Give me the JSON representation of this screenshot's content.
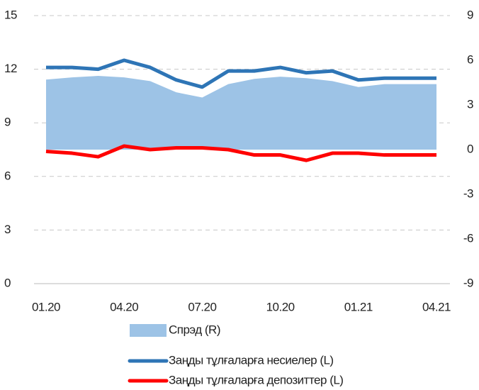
{
  "chart_data": {
    "type": "line",
    "categories": [
      "01.20",
      null,
      null,
      "04.20",
      null,
      null,
      "07.20",
      null,
      null,
      "10.20",
      null,
      null,
      "01.21",
      null,
      null,
      "04.21"
    ],
    "series": [
      {
        "name": "Спрэд (R)",
        "type": "area",
        "axis": "y2",
        "color": "#9dc3e6",
        "values": [
          4.7,
          4.85,
          4.95,
          4.85,
          4.6,
          3.85,
          3.5,
          4.4,
          4.75,
          4.9,
          4.8,
          4.6,
          4.2,
          4.4,
          4.4,
          4.4
        ]
      },
      {
        "name": "Заңды тұлғаларға несиелер  (L)",
        "type": "line",
        "color": "#2e75b6",
        "values": [
          12.1,
          12.1,
          12.0,
          12.5,
          12.1,
          11.4,
          11.0,
          11.9,
          11.9,
          12.1,
          11.8,
          11.9,
          11.4,
          11.5,
          11.5,
          11.5
        ]
      },
      {
        "name": "Заңды тұлғаларға депозиттер (L)",
        "type": "line",
        "color": "#ff0000",
        "values": [
          7.4,
          7.3,
          7.1,
          7.7,
          7.5,
          7.6,
          7.6,
          7.5,
          7.2,
          7.2,
          6.9,
          7.3,
          7.3,
          7.2,
          7.2,
          7.2
        ]
      }
    ],
    "ylim": [
      0,
      15
    ],
    "yticks": [
      0,
      3,
      6,
      9,
      12,
      15
    ],
    "y2lim": [
      -9,
      9
    ],
    "y2ticks": [
      -9,
      -6,
      -3,
      0,
      3,
      6,
      9
    ],
    "grid": true,
    "legend": "bottom"
  }
}
